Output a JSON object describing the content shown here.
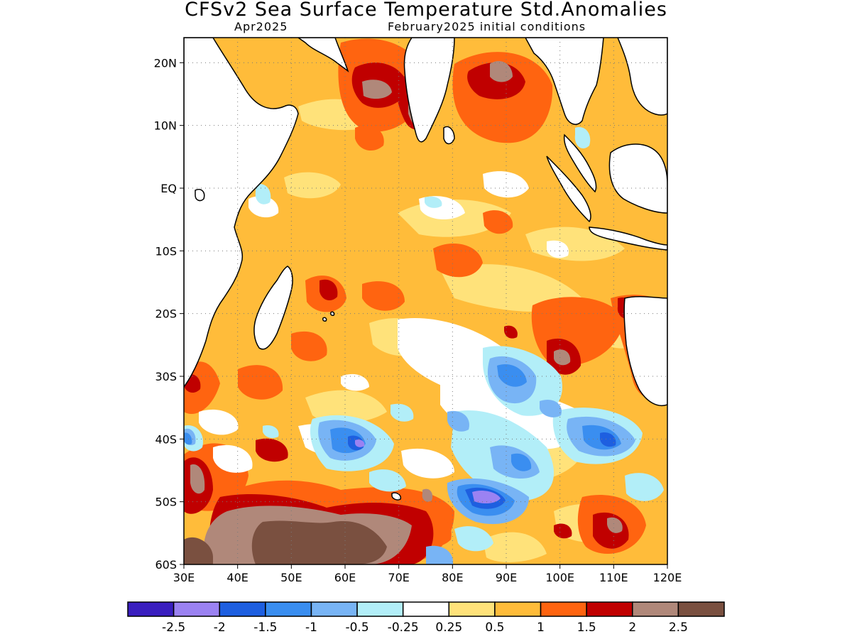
{
  "title": "CFSv2 Sea Surface Temperature Std.Anomalies",
  "subtitle_left": "Apr2025",
  "subtitle_right": "February2025 initial conditions",
  "map": {
    "lon_range": [
      30,
      120
    ],
    "lat_range": [
      -60,
      24
    ],
    "lat_ticks": [
      {
        "value": 20,
        "label": "20N"
      },
      {
        "value": 10,
        "label": "10N"
      },
      {
        "value": 0,
        "label": "EQ"
      },
      {
        "value": -10,
        "label": "10S"
      },
      {
        "value": -20,
        "label": "20S"
      },
      {
        "value": -30,
        "label": "30S"
      },
      {
        "value": -40,
        "label": "40S"
      },
      {
        "value": -50,
        "label": "50S"
      },
      {
        "value": -60,
        "label": "60S"
      }
    ],
    "lon_ticks": [
      {
        "value": 30,
        "label": "30E"
      },
      {
        "value": 40,
        "label": "40E"
      },
      {
        "value": 50,
        "label": "50E"
      },
      {
        "value": 60,
        "label": "60E"
      },
      {
        "value": 70,
        "label": "70E"
      },
      {
        "value": 80,
        "label": "80E"
      },
      {
        "value": 90,
        "label": "90E"
      },
      {
        "value": 100,
        "label": "100E"
      },
      {
        "value": 110,
        "label": "110E"
      },
      {
        "value": 120,
        "label": "120E"
      }
    ],
    "grid": "dotted"
  },
  "colorbar": {
    "colors": [
      "#3a1fbf",
      "#9b82f2",
      "#1e5fe0",
      "#3a8ef0",
      "#78b4f5",
      "#b2eef8",
      "#ffffff",
      "#ffe27a",
      "#ffbc3a",
      "#ff6410",
      "#c00000",
      "#b0887a",
      "#7a5040"
    ],
    "labels": [
      "-2.5",
      "-2",
      "-1.5",
      "-1",
      "-0.5",
      "-0.25",
      "0.25",
      "0.5",
      "1",
      "1.5",
      "2",
      "2.5"
    ]
  },
  "colors": {
    "land": "#ffffff",
    "coastline": "#000000",
    "pos_025": "#ffe27a",
    "pos_05": "#ffbc3a",
    "pos_1": "#ff6410",
    "pos_15": "#c00000",
    "pos_2": "#b0887a",
    "pos_25": "#7a5040",
    "neg_025": "#b2eef8",
    "neg_05": "#78b4f5",
    "neg_1": "#3a8ef0",
    "neg_15": "#1e5fe0",
    "neg_2": "#9b82f2"
  }
}
